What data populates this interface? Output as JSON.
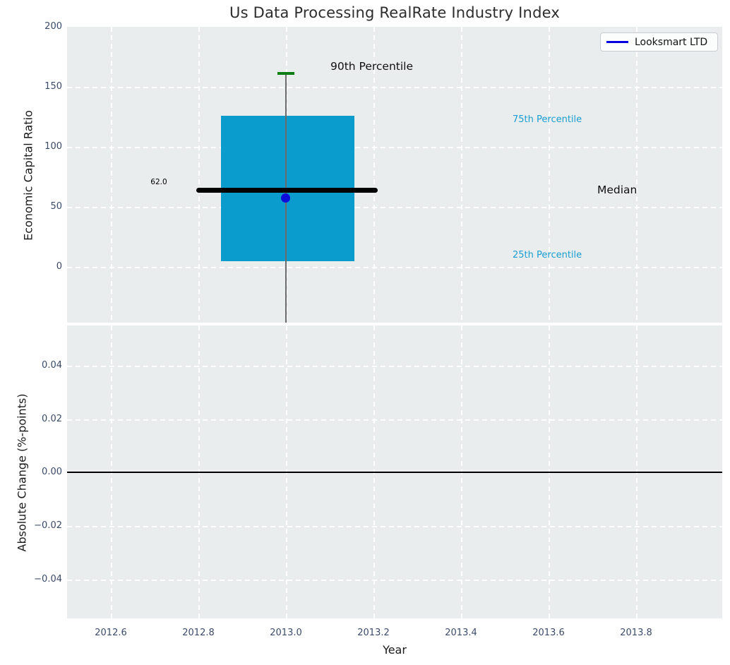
{
  "title": "Us Data Processing RealRate Industry Index",
  "legend": {
    "items": [
      {
        "label": "Looksmart LTD",
        "color": "#0000e0"
      }
    ],
    "position": "upper right"
  },
  "chart_data": [
    {
      "type": "boxplot",
      "title": "Us Data Processing RealRate Industry Index",
      "ylabel": "Economic Capital Ratio",
      "yticks": [
        "200",
        "150",
        "100",
        "50",
        "0"
      ],
      "ylim": [
        -48,
        200
      ],
      "xlim": [
        2012.5,
        2014.0
      ],
      "grid": true,
      "legend_position": "upper right",
      "series": [
        {
          "name": "industry-distribution-box",
          "x": 2013.0,
          "box_x_range": [
            2012.85,
            2013.15
          ],
          "percentile_90": 162,
          "percentile_75": 126,
          "median": 62,
          "percentile_25": 3
        }
      ],
      "company_point": {
        "name": "Looksmart LTD",
        "x": 2013.0,
        "y": 56
      },
      "annotations": {
        "median_value": "62.0",
        "p90": "90th Percentile",
        "p75": "75th Percentile",
        "median": "Median",
        "p25": "25th Percentile"
      },
      "colors": {
        "box": "#0a9ccd",
        "median_line": "#000000",
        "whisker_cap": "#0e7d12",
        "whisker_line": "#6b6b6b",
        "company_marker": "#0d0dd9",
        "percentile_labels": "#1b9ed1",
        "axes_background": "#e9edee",
        "tick_labels": "#3b4a68"
      }
    },
    {
      "type": "line",
      "ylabel": "Absolute Change (%-points)",
      "xlabel": "Year",
      "yticks": [
        "0.04",
        "0.02",
        "0.00",
        "−0.02",
        "−0.04"
      ],
      "xticks": [
        "2012.6",
        "2012.8",
        "2013.0",
        "2013.2",
        "2013.4",
        "2013.6",
        "2013.8"
      ],
      "ylim": [
        -0.055,
        0.055
      ],
      "zero_line_y": 0.0,
      "grid": true
    }
  ]
}
